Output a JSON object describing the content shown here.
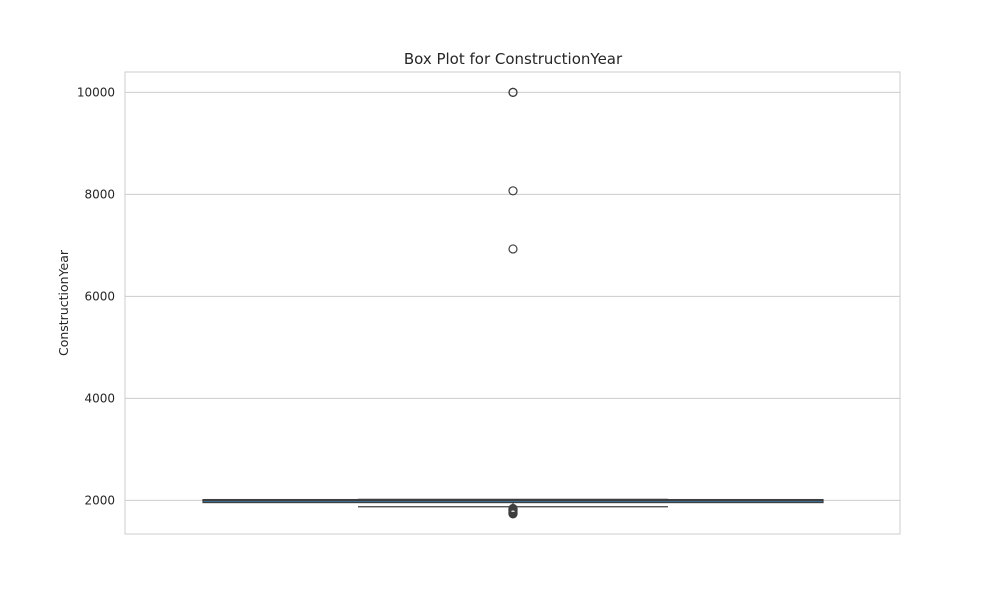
{
  "chart_data": {
    "type": "box",
    "title": "Box Plot for ConstructionYear",
    "xlabel": "",
    "ylabel": "ConstructionYear",
    "ylim": [
      1340,
      10400
    ],
    "yticks": [
      2000,
      4000,
      6000,
      8000,
      10000
    ],
    "ytick_labels": [
      "2000",
      "4000",
      "6000",
      "8000",
      "10000"
    ],
    "grid": true,
    "box": {
      "whisker_low": 1875,
      "q1": 1975,
      "median": 2000,
      "q3": 2015,
      "whisker_high": 2020,
      "outliers_high": [
        10000,
        10000,
        8070,
        6930
      ],
      "outliers_low": [
        1735,
        1745,
        1755,
        1765,
        1775,
        1790,
        1800,
        1815,
        1825,
        1840
      ]
    },
    "colors": {
      "box_fill": "#3a6f96",
      "box_edge": "#3f3f3f",
      "grid": "#cccccc",
      "axes_edge": "#cccccc",
      "text": "#262626"
    }
  }
}
